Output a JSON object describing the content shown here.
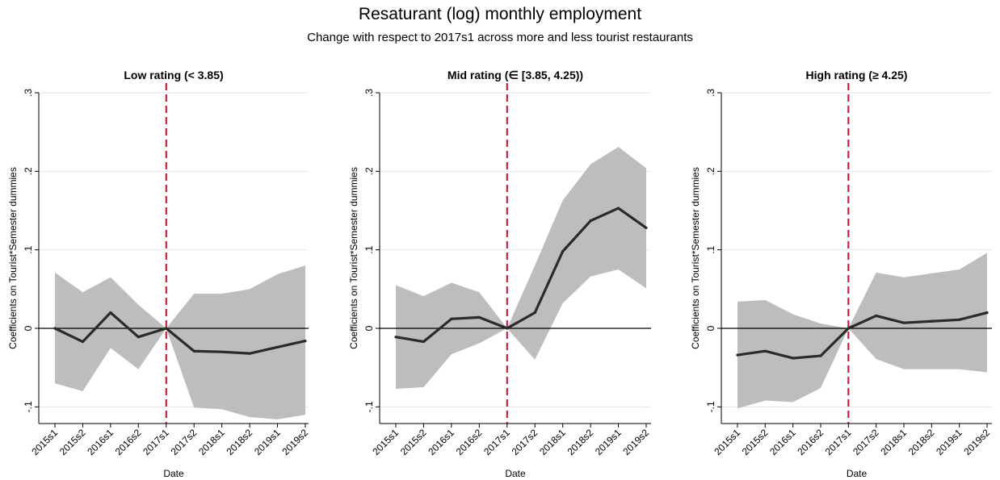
{
  "figure": {
    "title": "Resaturant (log) monthly employment",
    "subtitle": "Change with respect to 2017s1 across more and less tourist restaurants"
  },
  "colors": {
    "line": "#2b2b2b",
    "ci_band": "#bdbdbd",
    "event_line": "#c8102e",
    "zero_line": "#000000",
    "grid": "#e6e6e6"
  },
  "chart_data": [
    {
      "type": "line",
      "title": "Low rating (< 3.85)",
      "xlabel": "Date",
      "ylabel": "Coefficients on Tourist*Semester dummies",
      "ylim": [
        -0.12,
        0.31
      ],
      "yticks": [
        -0.1,
        0,
        0.1,
        0.2,
        0.3
      ],
      "ytick_labels": [
        "-.1",
        "0",
        ".1",
        ".2",
        ".3"
      ],
      "grid": true,
      "event_line_x": "2017s1",
      "categories": [
        "2015s1",
        "2015s2",
        "2016s1",
        "2016s2",
        "2017s1",
        "2017s2",
        "2018s1",
        "2018s2",
        "2019s1",
        "2019s2"
      ],
      "series": [
        {
          "values": [
            0.0,
            -0.017,
            0.02,
            -0.011,
            0.0,
            -0.029,
            -0.03,
            -0.032,
            -0.024,
            -0.016
          ]
        }
      ],
      "ci_upper": [
        0.071,
        0.046,
        0.065,
        0.03,
        0.0,
        0.044,
        0.044,
        0.05,
        0.069,
        0.08
      ],
      "ci_lower": [
        -0.07,
        -0.08,
        -0.025,
        -0.052,
        0.0,
        -0.101,
        -0.103,
        -0.113,
        -0.116,
        -0.11
      ]
    },
    {
      "type": "line",
      "title": "Mid rating (∈ [3.85, 4.25))",
      "xlabel": "Date",
      "ylabel": "Coefficients on Tourist*Semester dummies",
      "ylim": [
        -0.12,
        0.31
      ],
      "yticks": [
        -0.1,
        0,
        0.1,
        0.2,
        0.3
      ],
      "ytick_labels": [
        "-.1",
        "0",
        ".1",
        ".2",
        ".3"
      ],
      "grid": true,
      "event_line_x": "2017s1",
      "categories": [
        "2015s1",
        "2015s2",
        "2016s1",
        "2016s2",
        "2017s1",
        "2017s2",
        "2018s1",
        "2018s2",
        "2019s1",
        "2019s2"
      ],
      "series": [
        {
          "values": [
            -0.011,
            -0.017,
            0.012,
            0.014,
            0.0,
            0.02,
            0.098,
            0.137,
            0.153,
            0.128
          ]
        }
      ],
      "ci_upper": [
        0.055,
        0.041,
        0.058,
        0.046,
        0.0,
        0.08,
        0.163,
        0.209,
        0.231,
        0.204
      ],
      "ci_lower": [
        -0.077,
        -0.075,
        -0.033,
        -0.019,
        0.0,
        -0.04,
        0.032,
        0.066,
        0.075,
        0.051
      ]
    },
    {
      "type": "line",
      "title": "High rating (≥ 4.25)",
      "xlabel": "Date",
      "ylabel": "Coefficients on Tourist*Semester dummies",
      "ylim": [
        -0.12,
        0.31
      ],
      "yticks": [
        -0.1,
        0,
        0.1,
        0.2,
        0.3
      ],
      "ytick_labels": [
        "-.1",
        "0",
        ".1",
        ".2",
        ".3"
      ],
      "grid": true,
      "event_line_x": "2017s1",
      "categories": [
        "2015s1",
        "2015s2",
        "2016s1",
        "2016s2",
        "2017s1",
        "2017s2",
        "2018s1",
        "2018s2",
        "2019s1",
        "2019s2"
      ],
      "series": [
        {
          "values": [
            -0.034,
            -0.029,
            -0.038,
            -0.035,
            0.0,
            0.016,
            0.007,
            0.009,
            0.011,
            0.02
          ]
        }
      ],
      "ci_upper": [
        0.034,
        0.036,
        0.018,
        0.006,
        0.0,
        0.071,
        0.065,
        0.07,
        0.075,
        0.096
      ],
      "ci_lower": [
        -0.102,
        -0.092,
        -0.094,
        -0.076,
        0.0,
        -0.039,
        -0.052,
        -0.052,
        -0.052,
        -0.056
      ]
    }
  ]
}
